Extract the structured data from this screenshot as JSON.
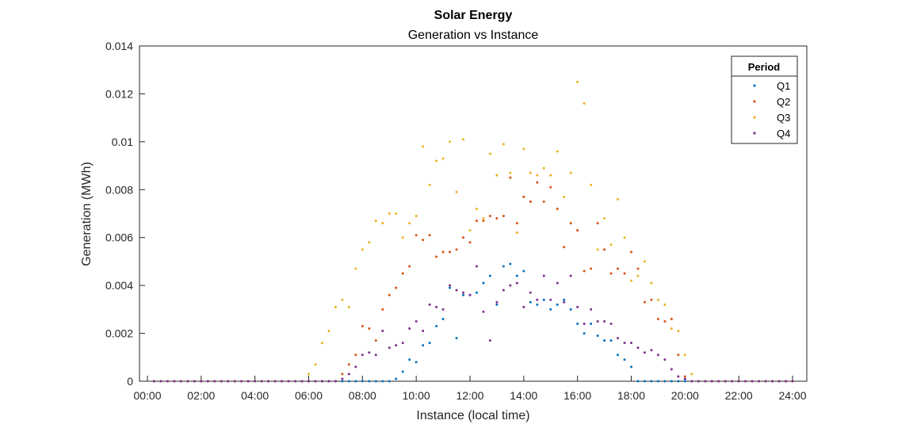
{
  "chart_data": {
    "type": "scatter",
    "title": "Solar Energy",
    "subtitle": "Generation vs Instance",
    "xlabel": "Instance (local time)",
    "ylabel": "Generation (MWh)",
    "xlim": [
      "00:00",
      "24:00"
    ],
    "ylim": [
      0,
      0.014
    ],
    "x_ticks": [
      "00:00",
      "02:00",
      "04:00",
      "06:00",
      "08:00",
      "10:00",
      "12:00",
      "14:00",
      "16:00",
      "18:00",
      "20:00",
      "22:00",
      "24:00"
    ],
    "y_ticks": [
      "0",
      "0.002",
      "0.004",
      "0.006",
      "0.008",
      "0.01",
      "0.012",
      "0.014"
    ],
    "grid": false,
    "legend": {
      "title": "Period",
      "position": "top-right"
    },
    "x": [
      "00:15",
      "00:30",
      "00:45",
      "01:00",
      "01:15",
      "01:30",
      "01:45",
      "02:00",
      "02:15",
      "02:30",
      "02:45",
      "03:00",
      "03:15",
      "03:30",
      "03:45",
      "04:00",
      "04:15",
      "04:30",
      "04:45",
      "05:00",
      "05:15",
      "05:30",
      "05:45",
      "06:00",
      "06:15",
      "06:30",
      "06:45",
      "07:00",
      "07:15",
      "07:30",
      "07:45",
      "08:00",
      "08:15",
      "08:30",
      "08:45",
      "09:00",
      "09:15",
      "09:30",
      "09:45",
      "10:00",
      "10:15",
      "10:30",
      "10:45",
      "11:00",
      "11:15",
      "11:30",
      "11:45",
      "12:00",
      "12:15",
      "12:30",
      "12:45",
      "13:00",
      "13:15",
      "13:30",
      "13:45",
      "14:00",
      "14:15",
      "14:30",
      "14:45",
      "15:00",
      "15:15",
      "15:30",
      "15:45",
      "16:00",
      "16:15",
      "16:30",
      "16:45",
      "17:00",
      "17:15",
      "17:30",
      "17:45",
      "18:00",
      "18:15",
      "18:30",
      "18:45",
      "19:00",
      "19:15",
      "19:30",
      "19:45",
      "20:00",
      "20:15",
      "20:30",
      "20:45",
      "21:00",
      "21:15",
      "21:30",
      "21:45",
      "22:00",
      "22:15",
      "22:30",
      "22:45",
      "23:00",
      "23:15",
      "23:30",
      "23:45",
      "24:00"
    ],
    "series": [
      {
        "name": "Q1",
        "color": "#0072BD",
        "values": [
          0,
          0,
          0,
          0,
          0,
          0,
          0,
          0,
          0,
          0,
          0,
          0,
          0,
          0,
          0,
          0,
          0,
          0,
          0,
          0,
          0,
          0,
          0,
          0,
          0,
          0,
          0,
          0,
          0,
          0,
          0,
          0,
          0,
          0,
          0,
          0,
          0.0001,
          0.0004,
          0.0009,
          0.0008,
          0.0015,
          0.0016,
          0.0023,
          0.0026,
          0.0039,
          0.0018,
          0.0036,
          0.0036,
          0.0037,
          0.0041,
          0.0044,
          0.0032,
          0.0048,
          0.0049,
          0.0044,
          0.0046,
          0.0033,
          0.0032,
          0.0034,
          0.003,
          0.0032,
          0.0034,
          0.003,
          0.0024,
          0.002,
          0.0024,
          0.0019,
          0.0017,
          0.0017,
          0.0011,
          0.0009,
          0.0006,
          0,
          0,
          0,
          0,
          0,
          0,
          0,
          0,
          0,
          0,
          0,
          0,
          0,
          0,
          0,
          0,
          0,
          0,
          0,
          0,
          0,
          0,
          0,
          0
        ]
      },
      {
        "name": "Q2",
        "color": "#D95319",
        "values": [
          0,
          0,
          0,
          0,
          0,
          0,
          0,
          0,
          0,
          0,
          0,
          0,
          0,
          0,
          0,
          0,
          0,
          0,
          0,
          0,
          0,
          0,
          0,
          0,
          0,
          0,
          0,
          0,
          0.0003,
          0.0007,
          0.0011,
          0.0023,
          0.0022,
          0.0017,
          0.003,
          0.0036,
          0.0039,
          0.0045,
          0.0048,
          0.0061,
          0.0059,
          0.0061,
          0.0052,
          0.0054,
          0.0054,
          0.0055,
          0.006,
          0.0058,
          0.0067,
          0.0067,
          0.0069,
          0.0068,
          0.0069,
          0.0085,
          0.0066,
          0.0077,
          0.0075,
          0.0083,
          0.0075,
          0.0081,
          0.0072,
          0.0056,
          0.0066,
          0.0063,
          0.0046,
          0.0047,
          0.0066,
          0.0055,
          0.0045,
          0.0047,
          0.0045,
          0.0054,
          0.0047,
          0.0033,
          0.0034,
          0.0026,
          0.0025,
          0.0026,
          0.0011,
          0.0002,
          0,
          0,
          0,
          0,
          0,
          0,
          0,
          0,
          0,
          0,
          0,
          0,
          0,
          0,
          0,
          0
        ]
      },
      {
        "name": "Q3",
        "color": "#EDB120",
        "values": [
          0,
          0,
          0,
          0,
          0,
          0,
          0,
          0,
          0,
          0,
          0,
          0,
          0,
          0,
          0,
          0,
          0,
          0,
          0,
          0,
          0,
          0,
          0,
          0.0003,
          0.0007,
          0.0016,
          0.0021,
          0.0031,
          0.0034,
          0.0031,
          0.0047,
          0.0055,
          0.0058,
          0.0067,
          0.0066,
          0.007,
          0.007,
          0.006,
          0.0066,
          0.0069,
          0.0098,
          0.0082,
          0.0092,
          0.0093,
          0.01,
          0.0079,
          0.0101,
          0.0063,
          0.0072,
          0.0068,
          0.0095,
          0.0086,
          0.0099,
          0.0087,
          0.0062,
          0.0097,
          0.0087,
          0.0086,
          0.0089,
          0.0086,
          0.0096,
          0.0077,
          0.0087,
          0.0125,
          0.0116,
          0.0082,
          0.0055,
          0.0068,
          0.0057,
          0.0076,
          0.006,
          0.0042,
          0.0044,
          0.005,
          0.0041,
          0.0034,
          0.0032,
          0.0022,
          0.0021,
          0.0011,
          0.0003,
          0,
          0,
          0,
          0,
          0,
          0,
          0,
          0,
          0,
          0,
          0,
          0,
          0,
          0,
          0
        ]
      },
      {
        "name": "Q4",
        "color": "#7E2F8E",
        "values": [
          0,
          0,
          0,
          0,
          0,
          0,
          0,
          0,
          0,
          0,
          0,
          0,
          0,
          0,
          0,
          0,
          0,
          0,
          0,
          0,
          0,
          0,
          0,
          0,
          0,
          0,
          0,
          0,
          0.0001,
          0.0003,
          0.0006,
          0.0011,
          0.0012,
          0.0011,
          0.0021,
          0.0014,
          0.0015,
          0.0016,
          0.0022,
          0.0025,
          0.0021,
          0.0032,
          0.0031,
          0.003,
          0.004,
          0.0038,
          0.0037,
          0.0036,
          0.0048,
          0.0029,
          0.0017,
          0.0033,
          0.0038,
          0.004,
          0.0041,
          0.0031,
          0.0037,
          0.0034,
          0.0044,
          0.0034,
          0.0041,
          0.0033,
          0.0044,
          0.0031,
          0.0024,
          0.003,
          0.0025,
          0.0025,
          0.0024,
          0.0018,
          0.0016,
          0.0016,
          0.0014,
          0.0012,
          0.0013,
          0.0011,
          0.0009,
          0.0005,
          0.0002,
          0.0001,
          0,
          0,
          0,
          0,
          0,
          0,
          0,
          0,
          0,
          0,
          0,
          0,
          0,
          0,
          0,
          0
        ]
      }
    ]
  }
}
